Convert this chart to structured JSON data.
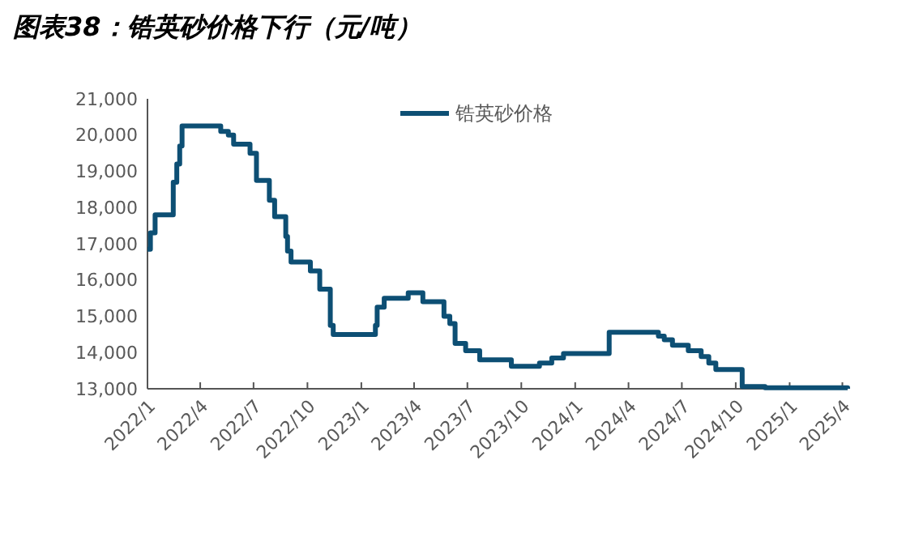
{
  "chart_data": {
    "type": "step",
    "title": "图表38：锆英砂价格下行（元/吨）",
    "x": [
      "2022-01-01",
      "2022-01-06",
      "2022-01-14",
      "2022-02-14",
      "2022-02-20",
      "2022-02-25",
      "2022-03-01",
      "2022-05-06",
      "2022-05-19",
      "2022-05-28",
      "2022-06-25",
      "2022-07-06",
      "2022-07-28",
      "2022-08-06",
      "2022-08-25",
      "2022-08-28",
      "2022-09-03",
      "2022-10-06",
      "2022-10-22",
      "2022-11-09",
      "2022-11-14",
      "2023-01-25",
      "2023-01-28",
      "2023-02-09",
      "2023-03-22",
      "2023-04-16",
      "2023-05-22",
      "2023-06-01",
      "2023-06-10",
      "2023-06-28",
      "2023-07-22",
      "2023-09-14",
      "2023-11-01",
      "2023-11-22",
      "2023-12-12",
      "2024-02-28",
      "2024-05-22",
      "2024-06-01",
      "2024-06-15",
      "2024-07-12",
      "2024-08-03",
      "2024-08-16",
      "2024-08-28",
      "2024-09-25",
      "2024-10-12",
      "2024-11-20",
      "2025-04-01",
      "2025-04-10"
    ],
    "series": [
      {
        "name": "锆英砂价格",
        "color": "#0d4f74",
        "values": [
          16850,
          17300,
          17800,
          18700,
          19200,
          19700,
          20250,
          20100,
          20000,
          19750,
          19500,
          18750,
          18200,
          17750,
          17200,
          16800,
          16500,
          16250,
          15750,
          14750,
          14500,
          14750,
          15250,
          15500,
          15650,
          15400,
          15000,
          14800,
          14250,
          14050,
          13800,
          13620,
          13710,
          13850,
          13970,
          14560,
          14450,
          14350,
          14200,
          14050,
          13890,
          13710,
          13530,
          13530,
          13060,
          13030,
          13030,
          13000
        ]
      }
    ],
    "xlim": [
      "2022-01-01",
      "2025-04-10"
    ],
    "xticks": [
      {
        "value": "2022-01",
        "label": "2022/1"
      },
      {
        "value": "2022-04",
        "label": "2022/4"
      },
      {
        "value": "2022-07",
        "label": "2022/7"
      },
      {
        "value": "2022-10",
        "label": "2022/10"
      },
      {
        "value": "2023-01",
        "label": "2023/1"
      },
      {
        "value": "2023-04",
        "label": "2023/4"
      },
      {
        "value": "2023-07",
        "label": "2023/7"
      },
      {
        "value": "2023-10",
        "label": "2023/10"
      },
      {
        "value": "2024-01",
        "label": "2024/1"
      },
      {
        "value": "2024-04",
        "label": "2024/4"
      },
      {
        "value": "2024-07",
        "label": "2024/7"
      },
      {
        "value": "2024-10",
        "label": "2024/10"
      },
      {
        "value": "2025-01",
        "label": "2025/1"
      },
      {
        "value": "2025-04",
        "label": "2025/4"
      }
    ],
    "ylim": [
      13000,
      21000
    ],
    "yticks": [
      {
        "value": 13000,
        "label": "13,000"
      },
      {
        "value": 14000,
        "label": "14,000"
      },
      {
        "value": 15000,
        "label": "15,000"
      },
      {
        "value": 16000,
        "label": "16,000"
      },
      {
        "value": 17000,
        "label": "17,000"
      },
      {
        "value": 18000,
        "label": "18,000"
      },
      {
        "value": 19000,
        "label": "19,000"
      },
      {
        "value": 20000,
        "label": "20,000"
      },
      {
        "value": 21000,
        "label": "21,000"
      }
    ],
    "legend": "top",
    "grid": false,
    "marker": "none",
    "line_style": "solid"
  }
}
